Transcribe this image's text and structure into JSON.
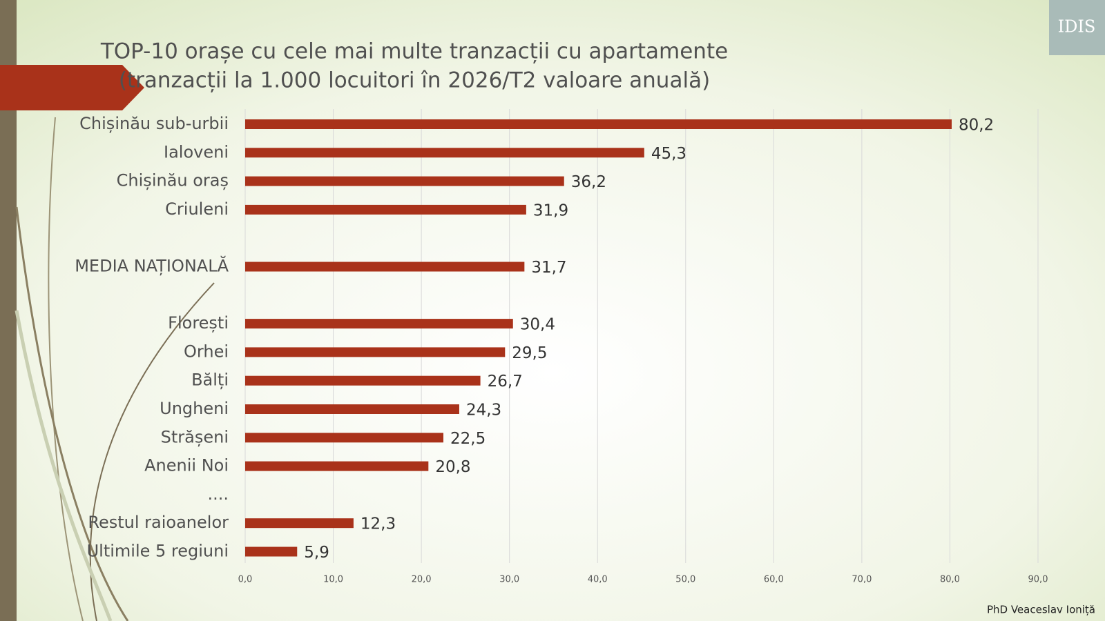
{
  "chart_data": {
    "type": "bar",
    "orientation": "horizontal",
    "title": "TOP-10 orașe cu cele mai multe tranzacții cu apartamente",
    "subtitle": "(tranzacții la 1.000 locuitori în 2026/T2 valoare anuală)",
    "categories": [
      "Chișinău sub-urbii",
      "Ialoveni",
      "Chișinău oraș",
      "Criuleni",
      null,
      "MEDIA NAȚIONALĂ",
      null,
      "Florești",
      "Orhei",
      "Bălți",
      "Ungheni",
      "Strășeni",
      "Anenii Noi",
      "....",
      "Restul raioanelor",
      "Ultimile 5 regiuni"
    ],
    "values": [
      80.2,
      45.3,
      36.2,
      31.9,
      null,
      31.7,
      null,
      30.4,
      29.5,
      26.7,
      24.3,
      22.5,
      20.8,
      null,
      12.3,
      5.9
    ],
    "value_labels": [
      "80,2",
      "45,3",
      "36,2",
      "31,9",
      null,
      "31,7",
      null,
      "30,4",
      "29,5",
      "26,7",
      "24,3",
      "22,5",
      "20,8",
      null,
      "12,3",
      "5,9"
    ],
    "color": "#a9321a",
    "xlim": [
      0,
      90
    ],
    "xticks": [
      {
        "value": 0,
        "label": "0,0"
      },
      {
        "value": 10,
        "label": "10,0"
      },
      {
        "value": 20,
        "label": "20,0"
      },
      {
        "value": 30,
        "label": "30,0"
      },
      {
        "value": 40,
        "label": "40,0"
      },
      {
        "value": 50,
        "label": "50,0"
      },
      {
        "value": 60,
        "label": "60,0"
      },
      {
        "value": 70,
        "label": "70,0"
      },
      {
        "value": 80,
        "label": "80,0"
      },
      {
        "value": 90,
        "label": "90,0"
      }
    ],
    "grid": true,
    "source": "PhD Veaceslav Ioniță",
    "logo": "IDIS"
  }
}
